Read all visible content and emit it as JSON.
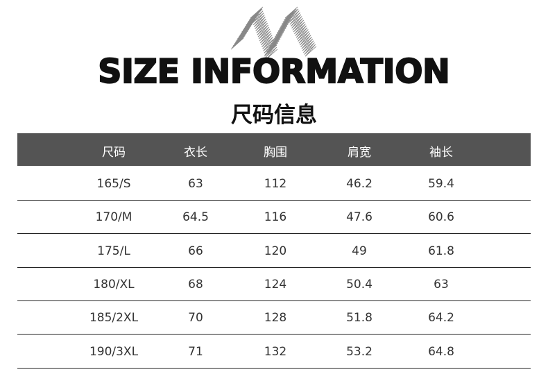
{
  "title": "SIZE INFORMATION",
  "subtitle": "尺码信息",
  "table": {
    "headers": [
      "尺码",
      "衣长",
      "胸围",
      "肩宽",
      "袖长"
    ],
    "rows": [
      [
        "165/S",
        "63",
        "112",
        "46.2",
        "59.4"
      ],
      [
        "170/M",
        "64.5",
        "116",
        "47.6",
        "60.6"
      ],
      [
        "175/L",
        "66",
        "120",
        "49",
        "61.8"
      ],
      [
        "180/XL",
        "68",
        "124",
        "50.4",
        "63"
      ],
      [
        "185/2XL",
        "70",
        "128",
        "51.8",
        "64.2"
      ],
      [
        "190/3XL",
        "71",
        "132",
        "53.2",
        "64.8"
      ]
    ]
  },
  "colors": {
    "header_bg": "#545454",
    "header_text": "#ffffff",
    "title": "#111111"
  }
}
